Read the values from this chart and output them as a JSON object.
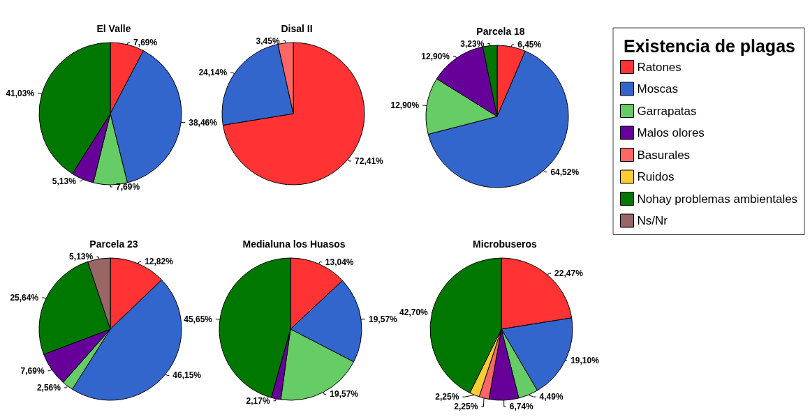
{
  "chart_data": {
    "type": "pie",
    "legend_title": "Existencia de plagas",
    "legend": "right",
    "categories": [
      "Ratones",
      "Moscas",
      "Garrapatas",
      "Malos olores",
      "Basurales",
      "Ruidos",
      "Nohay problemas ambientales",
      "Ns/Nr"
    ],
    "colors": [
      "#ff3333",
      "#3366cc",
      "#66cc66",
      "#660099",
      "#ff6666",
      "#ffcc33",
      "#007700",
      "#996666"
    ],
    "series": [
      {
        "name": "El Valle",
        "values": [
          7.69,
          38.46,
          7.69,
          5.13,
          null,
          null,
          41.03,
          null
        ],
        "value_labels": [
          "7,69%",
          "38,46%",
          "7,69%",
          "5,13%",
          null,
          null,
          "41,03%",
          null
        ]
      },
      {
        "name": "Disal II",
        "values": [
          72.41,
          24.14,
          null,
          null,
          3.45,
          null,
          null,
          null
        ],
        "value_labels": [
          "72,41%",
          "24,14%",
          null,
          null,
          "3,45%",
          null,
          null,
          null
        ]
      },
      {
        "name": "Parcela 18",
        "values": [
          6.45,
          64.52,
          12.9,
          12.9,
          null,
          null,
          3.23,
          null
        ],
        "value_labels": [
          "6,45%",
          "64,52%",
          "12,90%",
          "12,90%",
          null,
          null,
          "3,23%",
          null
        ]
      },
      {
        "name": "Parcela 23",
        "values": [
          12.82,
          46.15,
          2.56,
          7.69,
          null,
          null,
          25.64,
          5.13
        ],
        "value_labels": [
          "12,82%",
          "46,15%",
          "2,56%",
          "7,69%",
          null,
          null,
          "25,64%",
          "5,13%"
        ]
      },
      {
        "name": "Medialuna los Huasos",
        "values": [
          13.04,
          19.57,
          19.57,
          2.17,
          null,
          null,
          45.65,
          null
        ],
        "value_labels": [
          "13,04%",
          "19,57%",
          "19,57%",
          "2,17%",
          null,
          null,
          "45,65%",
          null
        ]
      },
      {
        "name": "Microbuseros",
        "values": [
          22.47,
          19.1,
          4.49,
          6.74,
          2.25,
          2.25,
          42.7,
          null
        ],
        "value_labels": [
          "22,47%",
          "19,10%",
          "4,49%",
          "6,74%",
          "2,25%",
          "2,25%",
          "42,70%",
          null
        ]
      }
    ]
  }
}
